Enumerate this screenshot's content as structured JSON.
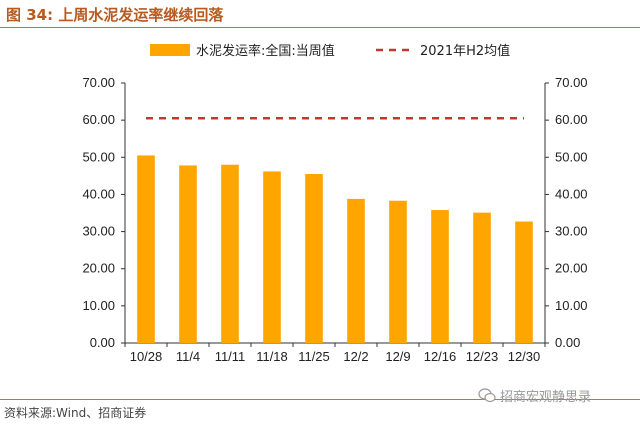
{
  "figure": {
    "title": "图 34:  上周水泥发运率继续回落",
    "source": "资料来源:Wind、招商证券",
    "watermark": "招商宏观静思录"
  },
  "chart_data": {
    "type": "bar",
    "categories": [
      "10/28",
      "11/4",
      "11/11",
      "11/18",
      "11/25",
      "12/2",
      "12/9",
      "12/16",
      "12/23",
      "12/30"
    ],
    "series": [
      {
        "name": "水泥发运率:全国:当周值",
        "type": "bar",
        "color": "#FFA500",
        "values": [
          50.5,
          47.8,
          48.0,
          46.2,
          45.5,
          38.8,
          38.3,
          35.8,
          35.1,
          32.7
        ]
      },
      {
        "name": "2021年H2均值",
        "type": "line",
        "style": "dashed",
        "color": "#C0392B",
        "values": [
          60.5,
          60.5,
          60.5,
          60.5,
          60.5,
          60.5,
          60.5,
          60.5,
          60.5,
          60.5
        ]
      }
    ],
    "yticks": [
      "0.00",
      "10.00",
      "20.00",
      "30.00",
      "40.00",
      "50.00",
      "60.00",
      "70.00"
    ],
    "ylim": [
      0,
      70
    ],
    "y2ticks": [
      "0.00",
      "10.00",
      "20.00",
      "30.00",
      "40.00",
      "50.00",
      "60.00",
      "70.00"
    ],
    "y2lim": [
      0,
      70
    ],
    "legend_position": "top",
    "grid": false
  }
}
